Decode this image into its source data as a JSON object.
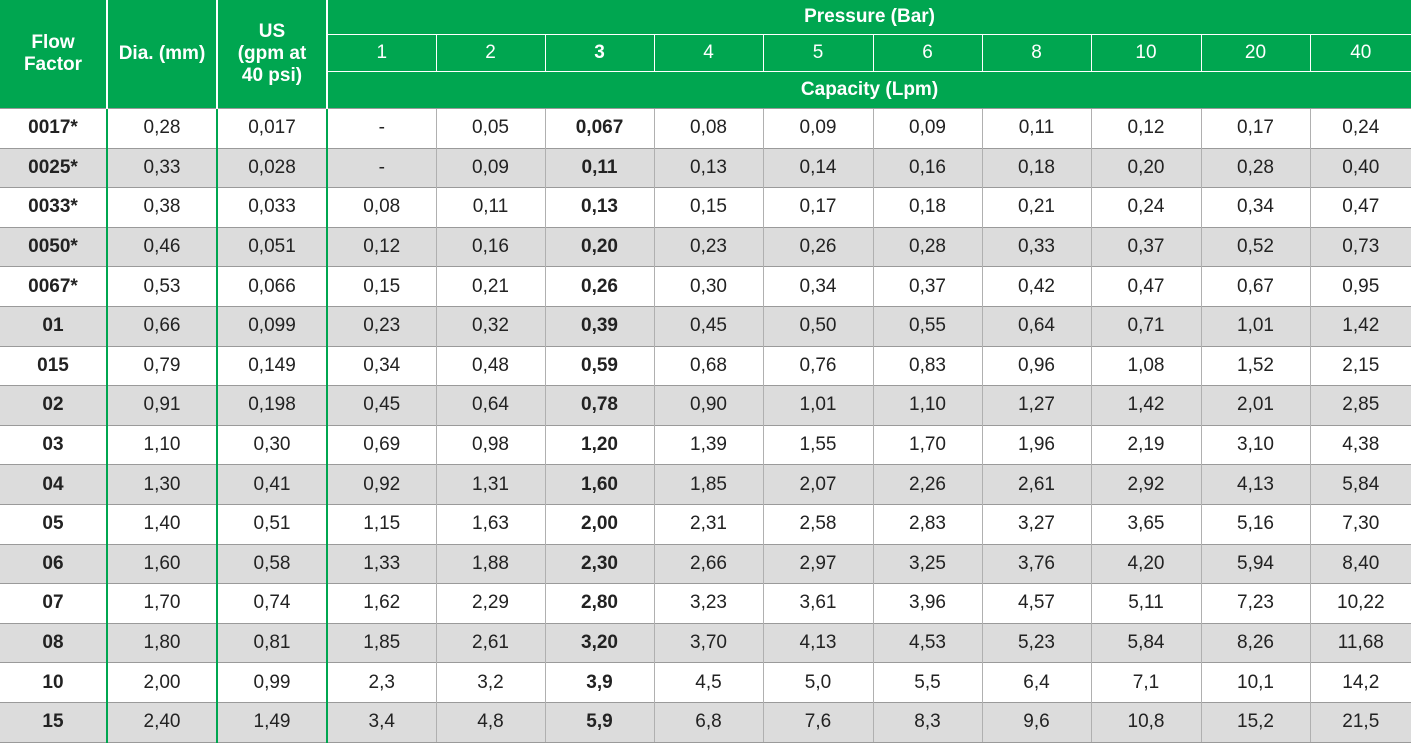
{
  "header": {
    "flow_factor": [
      "Flow",
      "Factor"
    ],
    "dia": "Dia. (mm)",
    "us": [
      "US",
      "(gpm at",
      "40 psi)"
    ],
    "pressure": "Pressure (Bar)",
    "capacity": "Capacity (Lpm)",
    "pressures": [
      "1",
      "2",
      "3",
      "4",
      "5",
      "6",
      "8",
      "10",
      "20",
      "40"
    ]
  },
  "rows": [
    [
      "0017*",
      "0,28",
      "0,017",
      "-",
      "0,05",
      "0,067",
      "0,08",
      "0,09",
      "0,09",
      "0,11",
      "0,12",
      "0,17",
      "0,24"
    ],
    [
      "0025*",
      "0,33",
      "0,028",
      "-",
      "0,09",
      "0,11",
      "0,13",
      "0,14",
      "0,16",
      "0,18",
      "0,20",
      "0,28",
      "0,40"
    ],
    [
      "0033*",
      "0,38",
      "0,033",
      "0,08",
      "0,11",
      "0,13",
      "0,15",
      "0,17",
      "0,18",
      "0,21",
      "0,24",
      "0,34",
      "0,47"
    ],
    [
      "0050*",
      "0,46",
      "0,051",
      "0,12",
      "0,16",
      "0,20",
      "0,23",
      "0,26",
      "0,28",
      "0,33",
      "0,37",
      "0,52",
      "0,73"
    ],
    [
      "0067*",
      "0,53",
      "0,066",
      "0,15",
      "0,21",
      "0,26",
      "0,30",
      "0,34",
      "0,37",
      "0,42",
      "0,47",
      "0,67",
      "0,95"
    ],
    [
      "01",
      "0,66",
      "0,099",
      "0,23",
      "0,32",
      "0,39",
      "0,45",
      "0,50",
      "0,55",
      "0,64",
      "0,71",
      "1,01",
      "1,42"
    ],
    [
      "015",
      "0,79",
      "0,149",
      "0,34",
      "0,48",
      "0,59",
      "0,68",
      "0,76",
      "0,83",
      "0,96",
      "1,08",
      "1,52",
      "2,15"
    ],
    [
      "02",
      "0,91",
      "0,198",
      "0,45",
      "0,64",
      "0,78",
      "0,90",
      "1,01",
      "1,10",
      "1,27",
      "1,42",
      "2,01",
      "2,85"
    ],
    [
      "03",
      "1,10",
      "0,30",
      "0,69",
      "0,98",
      "1,20",
      "1,39",
      "1,55",
      "1,70",
      "1,96",
      "2,19",
      "3,10",
      "4,38"
    ],
    [
      "04",
      "1,30",
      "0,41",
      "0,92",
      "1,31",
      "1,60",
      "1,85",
      "2,07",
      "2,26",
      "2,61",
      "2,92",
      "4,13",
      "5,84"
    ],
    [
      "05",
      "1,40",
      "0,51",
      "1,15",
      "1,63",
      "2,00",
      "2,31",
      "2,58",
      "2,83",
      "3,27",
      "3,65",
      "5,16",
      "7,30"
    ],
    [
      "06",
      "1,60",
      "0,58",
      "1,33",
      "1,88",
      "2,30",
      "2,66",
      "2,97",
      "3,25",
      "3,76",
      "4,20",
      "5,94",
      "8,40"
    ],
    [
      "07",
      "1,70",
      "0,74",
      "1,62",
      "2,29",
      "2,80",
      "3,23",
      "3,61",
      "3,96",
      "4,57",
      "5,11",
      "7,23",
      "10,22"
    ],
    [
      "08",
      "1,80",
      "0,81",
      "1,85",
      "2,61",
      "3,20",
      "3,70",
      "4,13",
      "4,53",
      "5,23",
      "5,84",
      "8,26",
      "11,68"
    ],
    [
      "10",
      "2,00",
      "0,99",
      "2,3",
      "3,2",
      "3,9",
      "4,5",
      "5,0",
      "5,5",
      "6,4",
      "7,1",
      "10,1",
      "14,2"
    ],
    [
      "15",
      "2,40",
      "1,49",
      "3,4",
      "4,8",
      "5,9",
      "6,8",
      "7,6",
      "8,3",
      "9,6",
      "10,8",
      "15,2",
      "21,5"
    ]
  ]
}
